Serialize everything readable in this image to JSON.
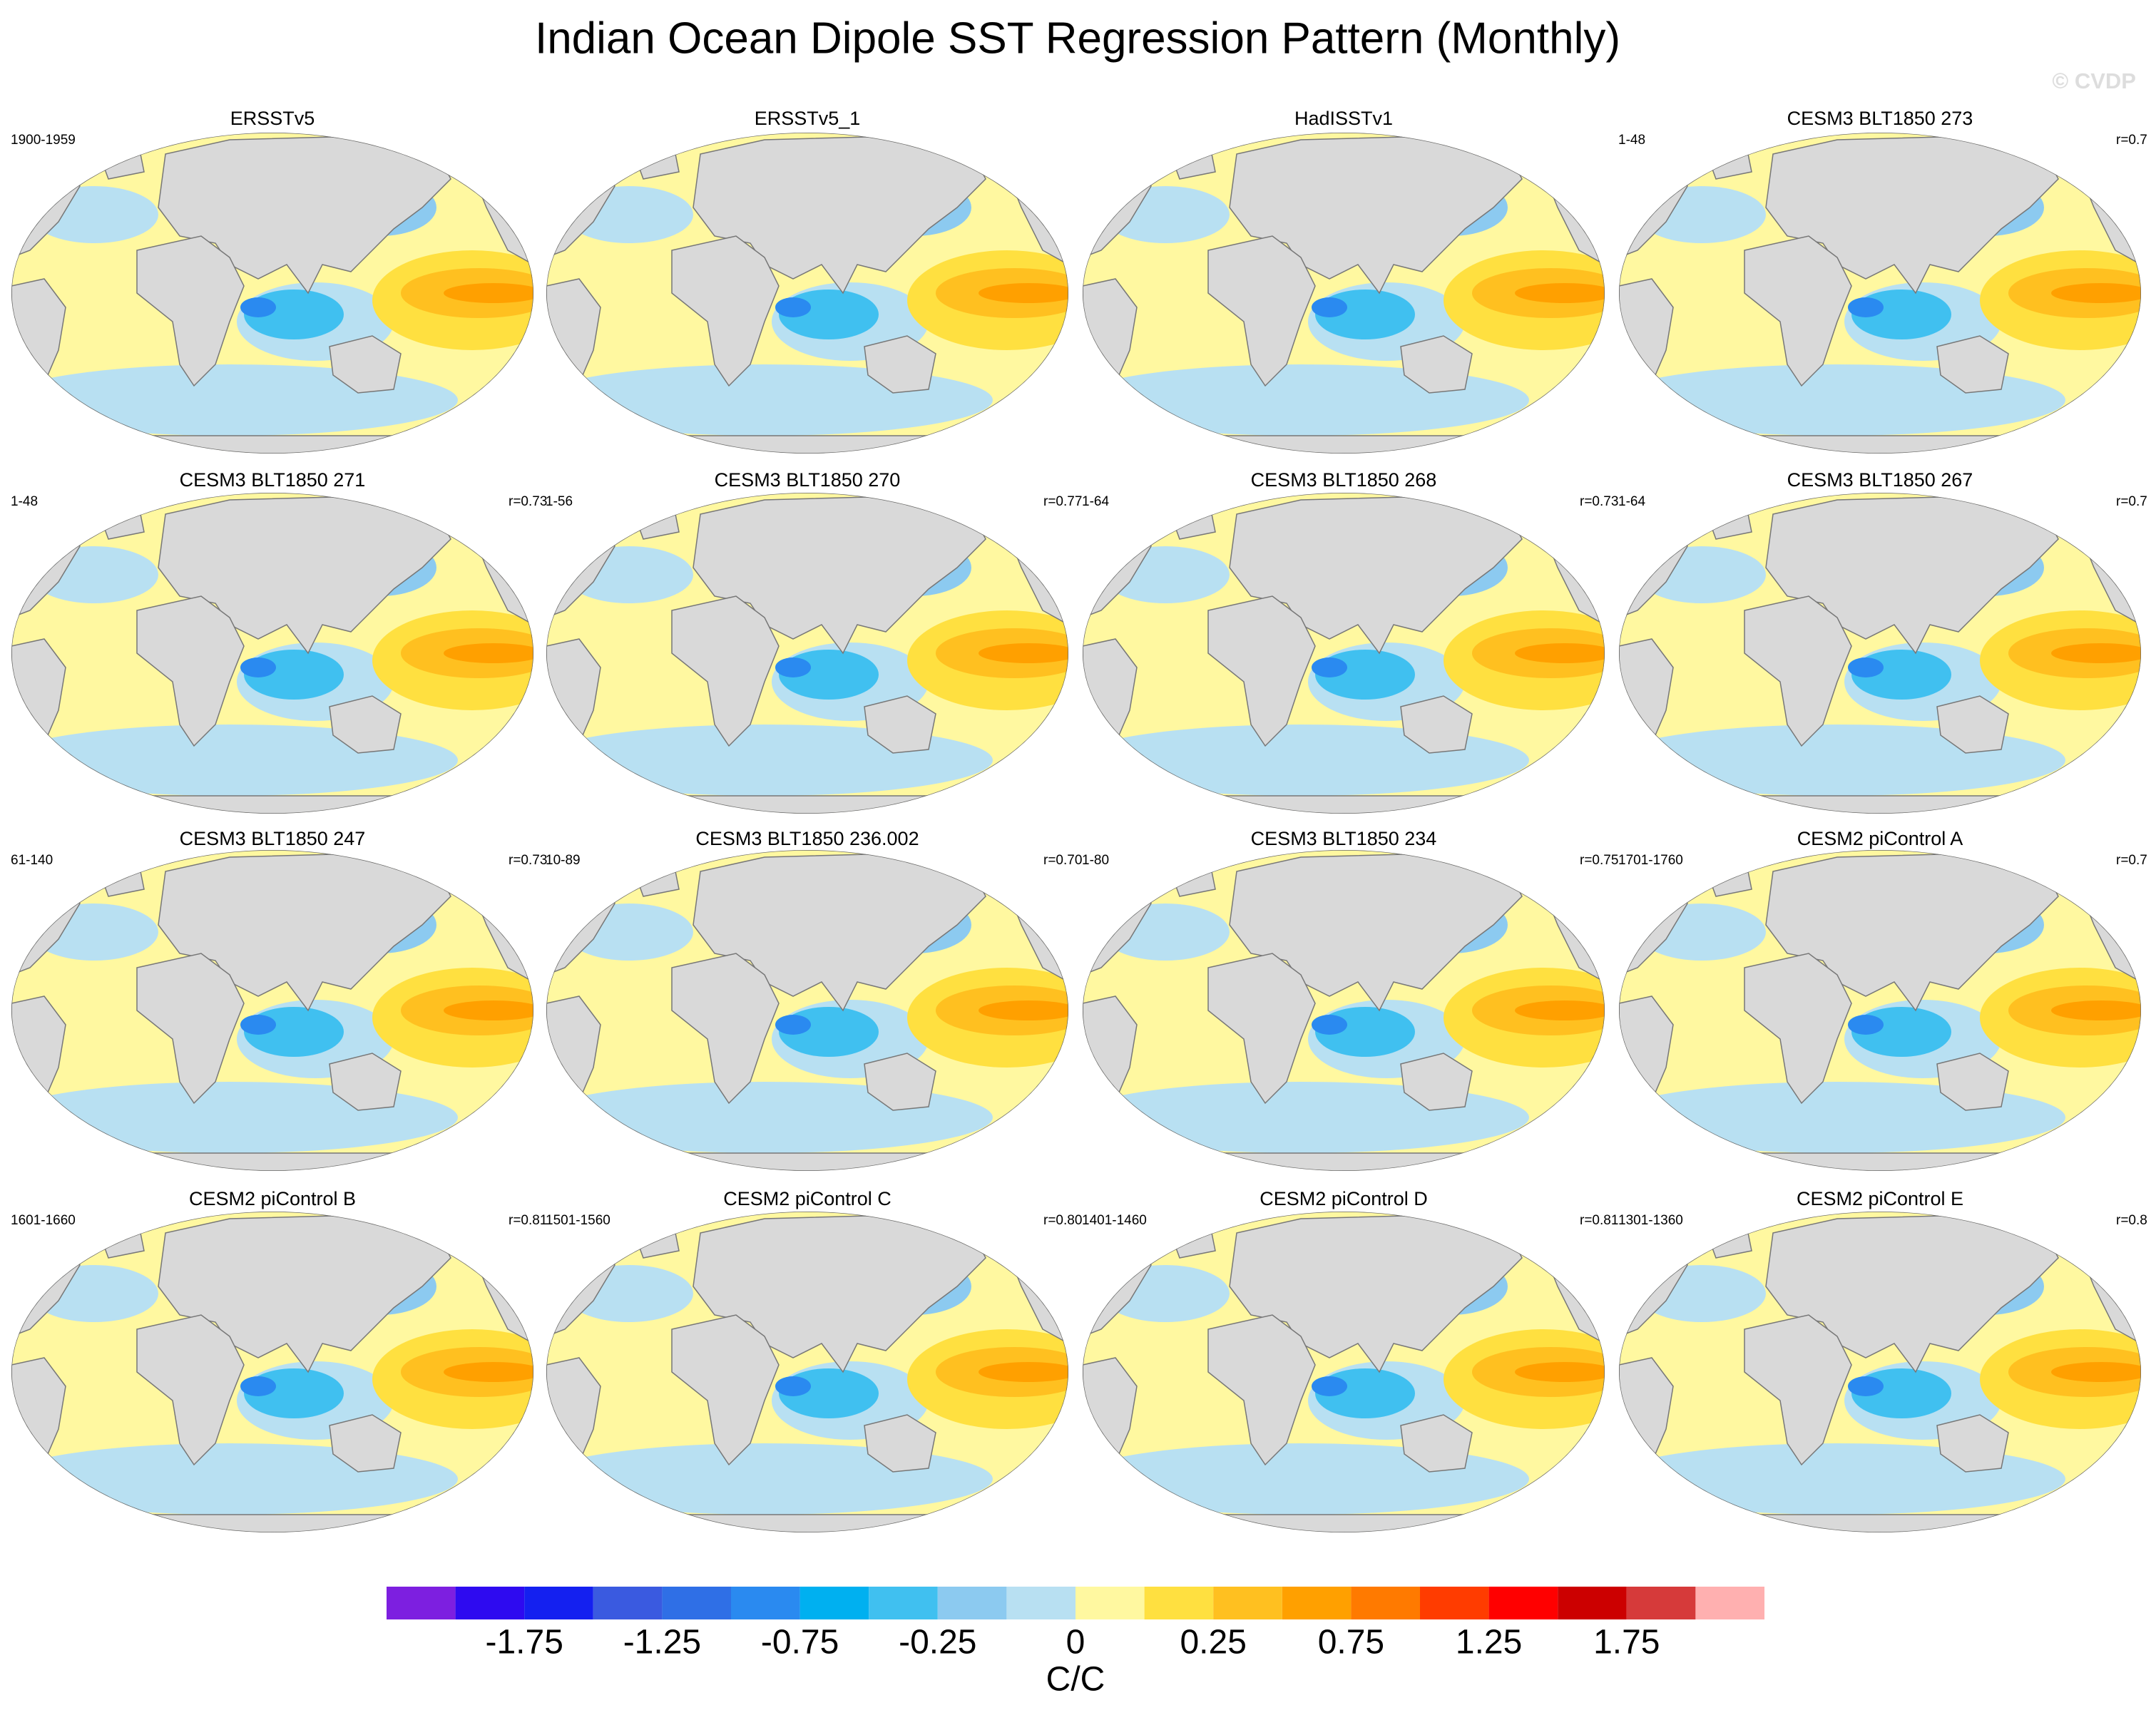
{
  "title": "Indian Ocean Dipole SST Regression Pattern (Monthly)",
  "watermark": "© CVDP",
  "panels": [
    {
      "title": "ERSSTv5",
      "period": "1900-1959"
    },
    {
      "title": "ERSSTv5_1"
    },
    {
      "title": "HadISSTv1"
    },
    {
      "title": "CESM3 BLT1850 273",
      "period": "1-48",
      "r": "r=0.7"
    },
    {
      "title": "CESM3 BLT1850 271",
      "period": "1-48",
      "r": "r=0.73"
    },
    {
      "title": "CESM3 BLT1850 270",
      "period": "1-56",
      "r": "r=0.77"
    },
    {
      "title": "CESM3 BLT1850 268",
      "period": "1-64",
      "r": "r=0.73"
    },
    {
      "title": "CESM3 BLT1850 267",
      "period": "1-64",
      "r": "r=0.7"
    },
    {
      "title": "CESM3 BLT1850 247",
      "period": "61-140",
      "r": "r=0.73"
    },
    {
      "title": "CESM3 BLT1850 236.002",
      "period": "10-89",
      "r": "r=0.70"
    },
    {
      "title": "CESM3 BLT1850 234",
      "period": "1-80",
      "r": "r=0.75"
    },
    {
      "title": "CESM2 piControl A",
      "period": "1701-1760",
      "r": "r=0.7"
    },
    {
      "title": "CESM2 piControl B",
      "period": "1601-1660",
      "r": "r=0.81"
    },
    {
      "title": "CESM2 piControl C",
      "period": "1501-1560",
      "r": "r=0.80"
    },
    {
      "title": "CESM2 piControl D",
      "period": "1401-1460",
      "r": "r=0.81"
    },
    {
      "title": "CESM2 piControl E",
      "period": "1301-1360",
      "r": "r=0.8"
    }
  ],
  "colorbar": {
    "colors": [
      "#7d1fe0",
      "#2e0af0",
      "#1420f0",
      "#3a5ae0",
      "#2f6fe6",
      "#2a8af0",
      "#00b0f0",
      "#40c0f0",
      "#8ccaf0",
      "#b8e0f2",
      "#fff8a0",
      "#ffe040",
      "#ffc020",
      "#ffa000",
      "#ff7a00",
      "#ff3c00",
      "#ff0000",
      "#cc0000",
      "#d63a3a",
      "#ffb0b0"
    ],
    "levels": [
      -2,
      -1.75,
      -1.5,
      -1.25,
      -1,
      -0.75,
      -0.5,
      -0.25,
      -0.1,
      0,
      0.1,
      0.25,
      0.5,
      0.75,
      1,
      1.25,
      1.5,
      1.75,
      2
    ],
    "ticks": [
      -1.75,
      -1.25,
      -0.75,
      -0.25,
      0,
      0.25,
      0.75,
      1.25,
      1.75
    ],
    "unit": "C/C"
  }
}
